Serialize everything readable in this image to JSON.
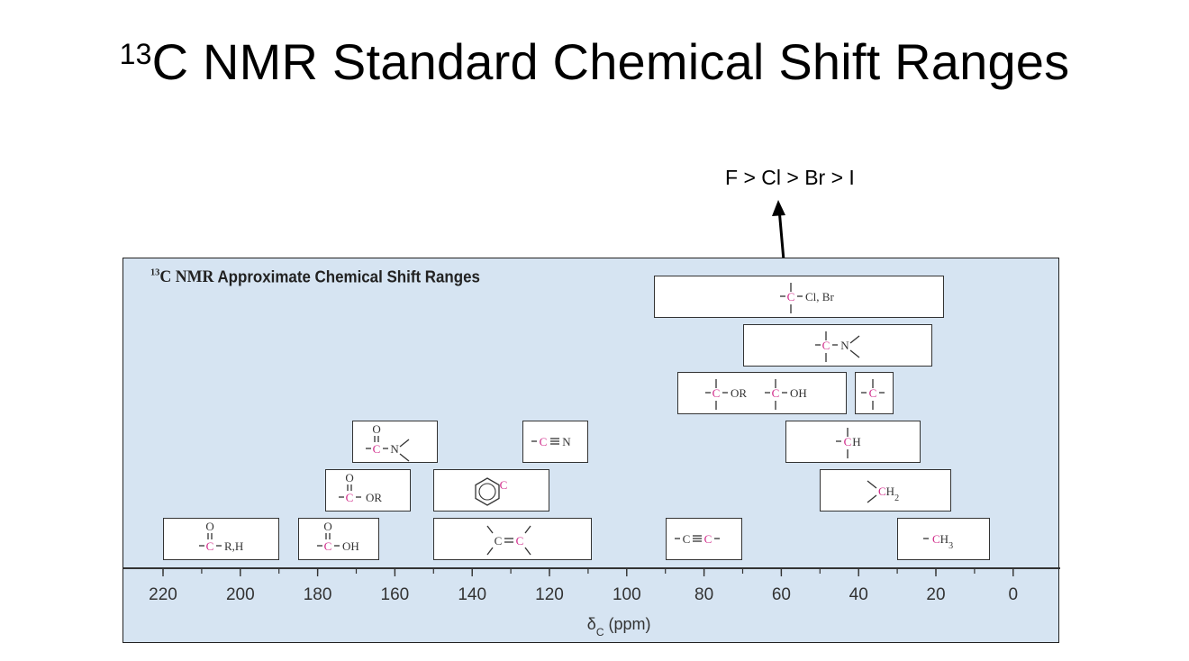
{
  "slide": {
    "title_sup": "13",
    "title_main": "C NMR Standard Chemical Shift Ranges",
    "halogen_note": "F > Cl > Br > I"
  },
  "chart_data": {
    "type": "range",
    "title_sup": "13",
    "title_prefix": "C NMR",
    "title_rest": " Approximate Chemical Shift Ranges",
    "xlabel_symbol": "δ",
    "xlabel_sub": "C",
    "xlabel_unit": " (ppm)",
    "xlim": [
      230,
      -10
    ],
    "x_reversed": true,
    "ticks": [
      220,
      200,
      180,
      160,
      140,
      120,
      100,
      80,
      60,
      40,
      20,
      0
    ],
    "minor_step": 10,
    "colors": {
      "carbon": "#d12b8a",
      "panel": "#d6e4f2",
      "ink": "#333333"
    },
    "ranges": [
      {
        "id": "haloalkane",
        "label": "-C-Cl, Br",
        "from": 93,
        "to": 18,
        "row": 6,
        "structure": "c-halo"
      },
      {
        "id": "amine-carbon",
        "label": "-C-N",
        "from": 70,
        "to": 21,
        "row": 5,
        "structure": "c-n"
      },
      {
        "id": "ether-alcohol",
        "label": "-C-OR  -C-OH",
        "from": 87,
        "to": 43,
        "row": 4,
        "structure": "c-or-oh"
      },
      {
        "id": "quaternary",
        "label": "-C-",
        "from": 41,
        "to": 31,
        "row": 4,
        "structure": "c-quat"
      },
      {
        "id": "amide",
        "label": "amide C=O",
        "from": 171,
        "to": 149,
        "row": 3,
        "structure": "amide"
      },
      {
        "id": "nitrile",
        "label": "-C≡N",
        "from": 127,
        "to": 110,
        "row": 3,
        "structure": "nitrile"
      },
      {
        "id": "methine",
        "label": "-CH",
        "from": 59,
        "to": 24,
        "row": 3,
        "structure": "ch"
      },
      {
        "id": "ester",
        "label": "ester C=O",
        "from": 178,
        "to": 156,
        "row": 2,
        "structure": "ester"
      },
      {
        "id": "aromatic",
        "label": "aromatic C",
        "from": 150,
        "to": 120,
        "row": 2,
        "structure": "aromatic"
      },
      {
        "id": "methylene",
        "label": "CH2",
        "from": 50,
        "to": 16,
        "row": 2,
        "structure": "ch2"
      },
      {
        "id": "aldehyde-ketone",
        "label": "ketone/aldehyde C=O",
        "from": 220,
        "to": 190,
        "row": 1,
        "structure": "ketone"
      },
      {
        "id": "carboxylic-acid",
        "label": "acid C=O",
        "from": 185,
        "to": 164,
        "row": 1,
        "structure": "acid"
      },
      {
        "id": "alkene",
        "label": "C=C",
        "from": 150,
        "to": 109,
        "row": 1,
        "structure": "alkene"
      },
      {
        "id": "alkyne",
        "label": "-C≡C-",
        "from": 90,
        "to": 70,
        "row": 1,
        "structure": "alkyne"
      },
      {
        "id": "methyl",
        "label": "-CH3",
        "from": 30,
        "to": 6,
        "row": 1,
        "structure": "ch3"
      }
    ],
    "chem_text": {
      "O": "O",
      "C": "C",
      "N": "N",
      "H": "H",
      "R_H": "R,H",
      "OR": "OR",
      "OH": "OH",
      "Cl_Br": "Cl, Br",
      "CH": "CH",
      "CH2": "CH",
      "two": "2",
      "three": "3"
    }
  }
}
